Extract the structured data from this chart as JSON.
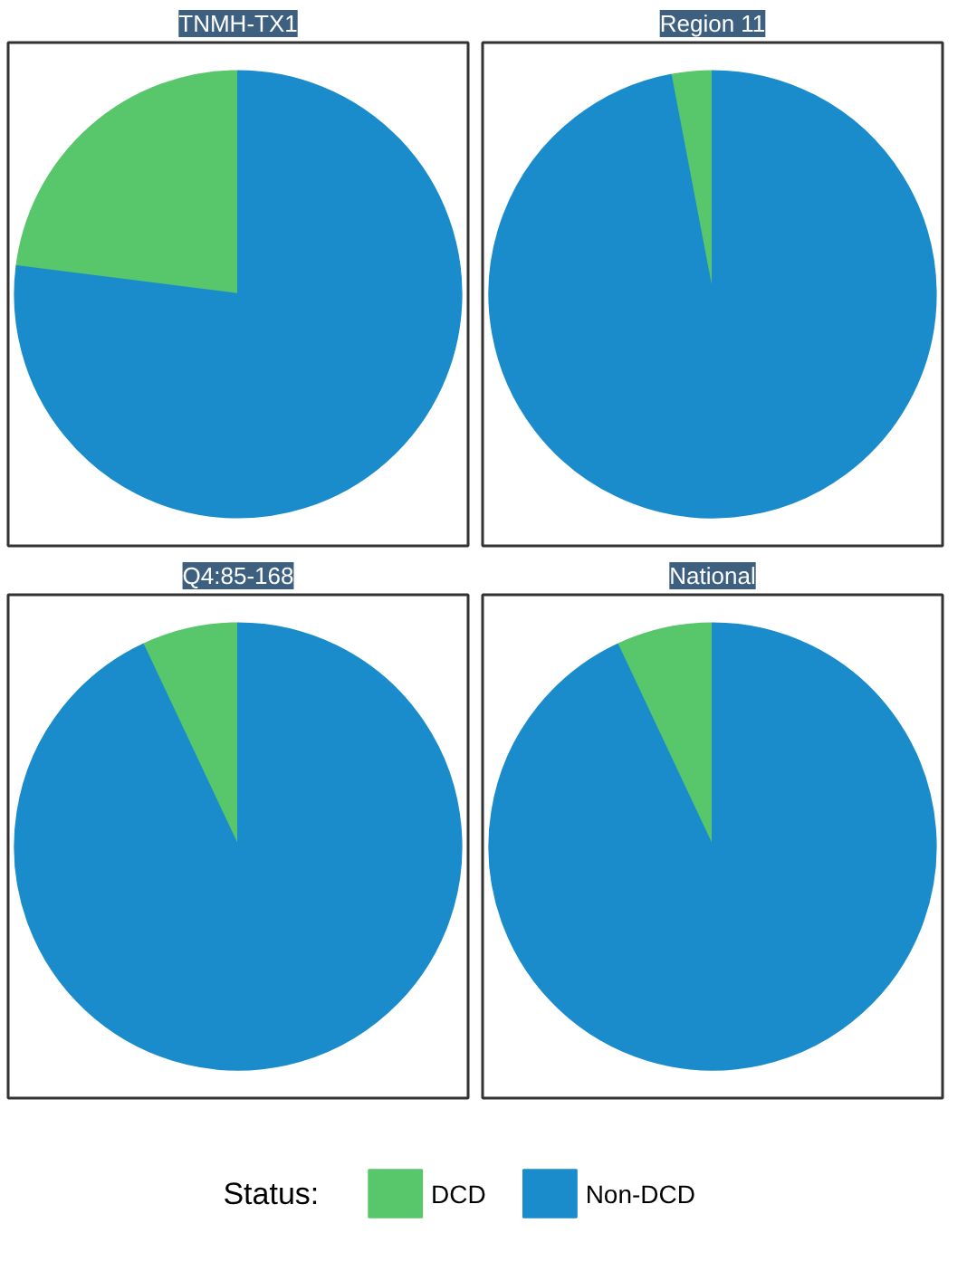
{
  "chart_data": [
    {
      "type": "pie",
      "title": "TNMH-TX1",
      "categories": [
        "DCD",
        "Non-DCD"
      ],
      "values": [
        23,
        77
      ],
      "colors": [
        "#58c66a",
        "#1a8ccc"
      ],
      "legend": "bottom",
      "legend_title": "Status:"
    },
    {
      "type": "pie",
      "title": "Region 11",
      "categories": [
        null,
        null
      ],
      "values": [
        3,
        97
      ],
      "colors": [
        "#58c66a",
        "#1a8ccc"
      ]
    },
    {
      "type": "pie",
      "title": "Q4:85-168",
      "categories": [
        null,
        null
      ],
      "values": [
        7,
        93
      ],
      "colors": [
        "#58c66a",
        "#1a8ccc"
      ]
    },
    {
      "type": "pie",
      "title": "National",
      "categories": [
        null,
        null
      ],
      "values": [
        7,
        93
      ],
      "colors": [
        "#58c66a",
        "#1a8ccc"
      ]
    }
  ]
}
